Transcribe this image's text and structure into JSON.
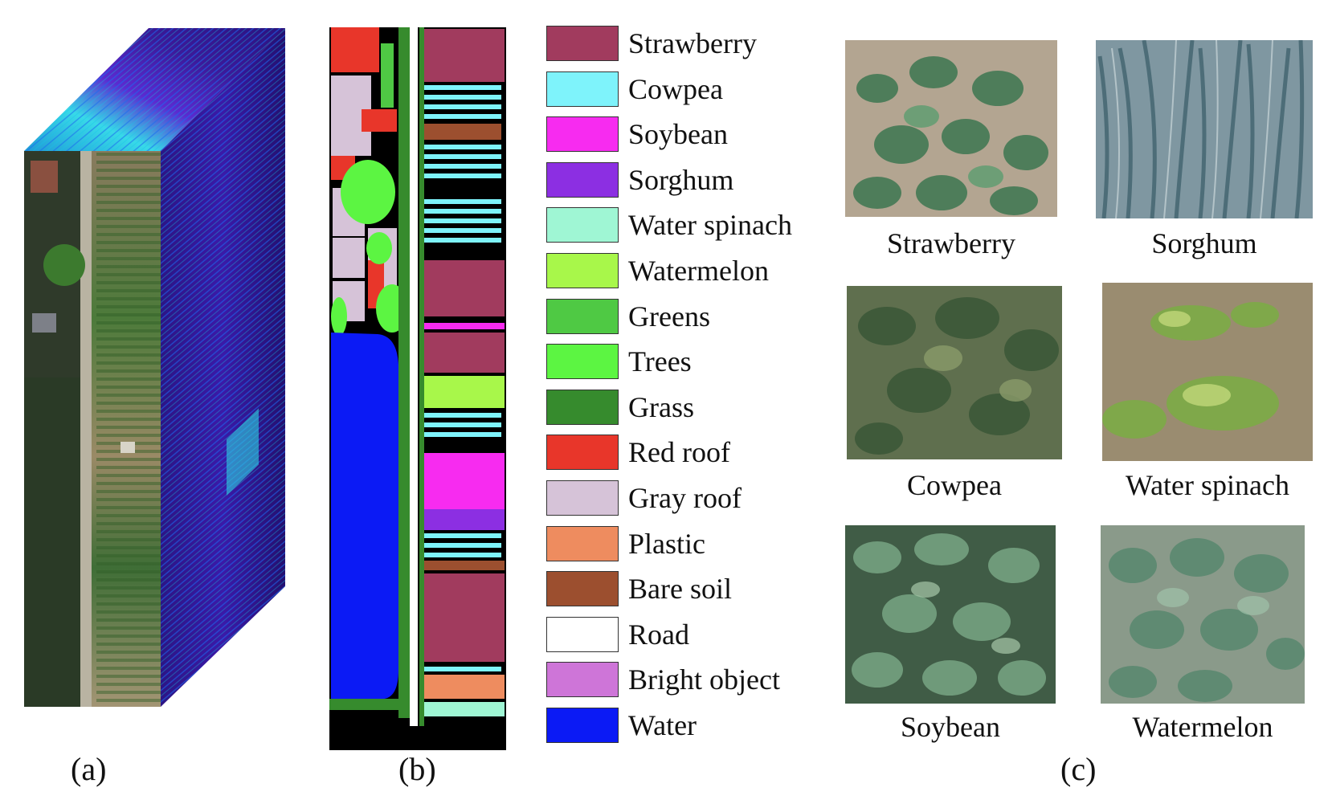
{
  "panels": {
    "a": {
      "label": "(a)"
    },
    "b": {
      "label": "(b)"
    },
    "c": {
      "label": "(c)"
    }
  },
  "legend": [
    {
      "label": "Strawberry",
      "color": "#A13B5E"
    },
    {
      "label": "Cowpea",
      "color": "#7EF3FB"
    },
    {
      "label": "Soybean",
      "color": "#F72BF0"
    },
    {
      "label": "Sorghum",
      "color": "#8C2FE2"
    },
    {
      "label": "Water spinach",
      "color": "#9FF6D4"
    },
    {
      "label": "Watermelon",
      "color": "#A8F74A"
    },
    {
      "label": "Greens",
      "color": "#4FC944"
    },
    {
      "label": "Trees",
      "color": "#5CF542"
    },
    {
      "label": "Grass",
      "color": "#368B2D"
    },
    {
      "label": "Red roof",
      "color": "#E8362A"
    },
    {
      "label": "Gray roof",
      "color": "#D6C3D8"
    },
    {
      "label": "Plastic",
      "color": "#EE8C5F"
    },
    {
      "label": "Bare soil",
      "color": "#9C4F2F"
    },
    {
      "label": "Road",
      "color": "#FFFFFF"
    },
    {
      "label": "Bright object",
      "color": "#CE75D8"
    },
    {
      "label": "Water",
      "color": "#0B1AF5"
    }
  ],
  "photos": [
    {
      "caption": "Strawberry"
    },
    {
      "caption": "Sorghum"
    },
    {
      "caption": "Cowpea"
    },
    {
      "caption": "Water spinach"
    },
    {
      "caption": "Soybean"
    },
    {
      "caption": "Watermelon"
    }
  ]
}
